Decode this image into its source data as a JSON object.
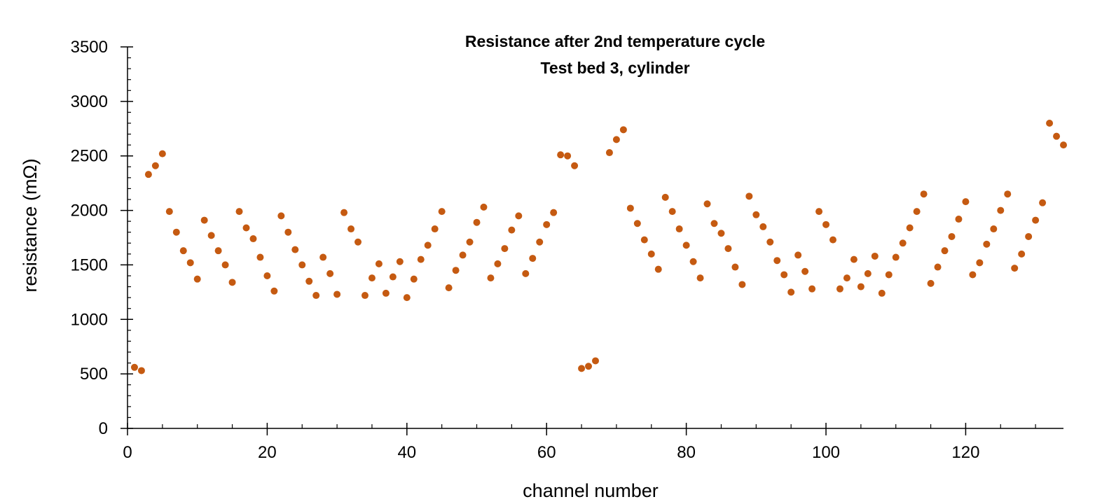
{
  "chart_data": {
    "type": "scatter",
    "title": "Resistance after 2nd temperature cycle",
    "subtitle": "Test bed 3, cylinder",
    "xlabel": "channel number",
    "ylabel": "resistance  (mΩ)",
    "xlim": [
      0,
      134
    ],
    "ylim": [
      0,
      3500
    ],
    "xticks": [
      0,
      20,
      40,
      60,
      80,
      100,
      120
    ],
    "yticks": [
      0,
      500,
      1000,
      1500,
      2000,
      2500,
      3000,
      3500
    ],
    "grid": false,
    "marker_color": "#C55A11",
    "series": [
      {
        "x": [
          1,
          2,
          3,
          4,
          5,
          6,
          7,
          8,
          9,
          10,
          11,
          12,
          13,
          14,
          15,
          16,
          17,
          18,
          19,
          20,
          21,
          22,
          23,
          24,
          25,
          26,
          27,
          28,
          29,
          30,
          31,
          32,
          33,
          34,
          35,
          36,
          37,
          38,
          39,
          40,
          41,
          42,
          43,
          44,
          45,
          46,
          47,
          48,
          49,
          50,
          51,
          52,
          53,
          54,
          55,
          56,
          57,
          58,
          59,
          60,
          61,
          62,
          63,
          64,
          65,
          66,
          67,
          69,
          70,
          71,
          72,
          73,
          74,
          75,
          76,
          77,
          78,
          79,
          80,
          81,
          82,
          83,
          84,
          85,
          86,
          87,
          88,
          89,
          90,
          91,
          92,
          93,
          94,
          95,
          96,
          97,
          98,
          99,
          100,
          101,
          102,
          103,
          104,
          105,
          106,
          107,
          108,
          109,
          110,
          111,
          112,
          113,
          114,
          115,
          116,
          117,
          118,
          119,
          120,
          121,
          122,
          123,
          124,
          125,
          126,
          127,
          128,
          129,
          130,
          131,
          132,
          133,
          134
        ],
        "y": [
          560,
          530,
          2330,
          2410,
          2520,
          1990,
          1800,
          1630,
          1520,
          1370,
          1910,
          1770,
          1630,
          1500,
          1340,
          1990,
          1840,
          1740,
          1570,
          1400,
          1260,
          1950,
          1800,
          1640,
          1500,
          1350,
          1220,
          1570,
          1420,
          1230,
          1980,
          1830,
          1710,
          1220,
          1380,
          1510,
          1240,
          1390,
          1530,
          1200,
          1370,
          1550,
          1680,
          1830,
          1990,
          1290,
          1450,
          1590,
          1710,
          1890,
          2030,
          1380,
          1510,
          1650,
          1820,
          1950,
          1420,
          1560,
          1710,
          1870,
          1980,
          2510,
          2500,
          2410,
          550,
          570,
          620,
          2530,
          2650,
          2740,
          2020,
          1880,
          1730,
          1600,
          1460,
          2120,
          1990,
          1830,
          1680,
          1530,
          1380,
          2060,
          1880,
          1790,
          1650,
          1480,
          1320,
          2130,
          1960,
          1850,
          1710,
          1540,
          1410,
          1250,
          1590,
          1440,
          1280,
          1990,
          1870,
          1730,
          1280,
          1380,
          1550,
          1300,
          1420,
          1580,
          1240,
          1410,
          1570,
          1700,
          1840,
          1990,
          2150,
          1330,
          1480,
          1630,
          1760,
          1920,
          2080,
          1410,
          1520,
          1690,
          1830,
          2000,
          2150,
          1470,
          1600,
          1760,
          1910,
          2070,
          2800,
          2680,
          2600
        ]
      }
    ]
  }
}
